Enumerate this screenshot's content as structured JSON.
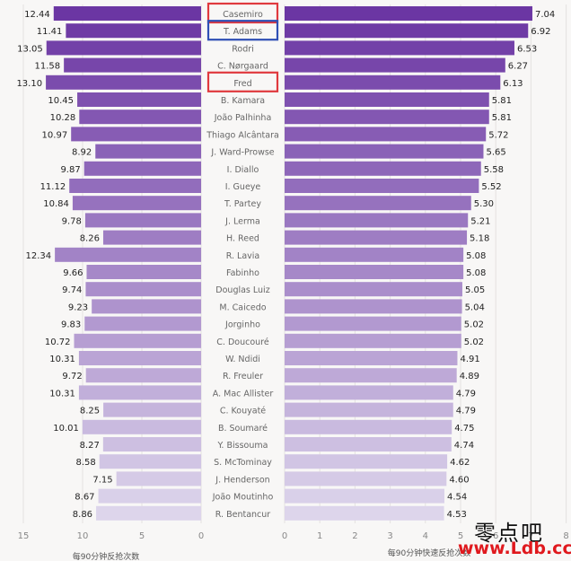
{
  "chart_data": {
    "type": "bar",
    "layout": "butterfly",
    "categories": [
      "Casemiro",
      "T. Adams",
      "Rodri",
      "C. Nørgaard",
      "Fred",
      "B. Kamara",
      "João Palhinha",
      "Thiago Alcântara",
      "J. Ward-Prowse",
      "I. Diallo",
      "I. Gueye",
      "T. Partey",
      "J. Lerma",
      "H. Reed",
      "R. Lavia",
      "Fabinho",
      "Douglas Luiz",
      "M. Caicedo",
      "Jorginho",
      "C. Doucouré",
      "W. Ndidi",
      "R. Freuler",
      "A. Mac Allister",
      "C. Kouyaté",
      "B. Soumaré",
      "Y. Bissouma",
      "S. McTominay",
      "J. Henderson",
      "João Moutinho",
      "R. Bentancur"
    ],
    "series": [
      {
        "name": "每90分钟反抢次数",
        "side": "left",
        "values": [
          12.44,
          11.41,
          13.05,
          11.58,
          13.1,
          10.45,
          10.28,
          10.97,
          8.92,
          9.87,
          11.12,
          10.84,
          9.78,
          8.26,
          12.34,
          9.66,
          9.74,
          9.23,
          9.83,
          10.72,
          10.31,
          9.72,
          10.31,
          8.25,
          10.01,
          8.27,
          8.58,
          7.15,
          8.67,
          8.86
        ],
        "labels": [
          "12.44",
          "11.41",
          "13.05",
          "11.58",
          "13.10",
          "10.45",
          "10.28",
          "10.97",
          "8.92",
          "9.87",
          "11.12",
          "10.84",
          "9.78",
          "8.26",
          "12.34",
          "9.66",
          "9.74",
          "9.23",
          "9.83",
          "10.72",
          "10.31",
          "9.72",
          "10.31",
          "8.25",
          "10.01",
          "8.27",
          "8.58",
          "7.15",
          "8.67",
          "8.86"
        ]
      },
      {
        "name": "每90分钟快速反抢次数",
        "side": "right",
        "values": [
          7.04,
          6.92,
          6.53,
          6.27,
          6.13,
          5.81,
          5.81,
          5.72,
          5.65,
          5.58,
          5.52,
          5.3,
          5.21,
          5.18,
          5.08,
          5.08,
          5.05,
          5.04,
          5.02,
          5.02,
          4.91,
          4.89,
          4.79,
          4.79,
          4.75,
          4.74,
          4.62,
          4.6,
          4.54,
          4.53
        ],
        "labels": [
          "7.04",
          "6.92",
          "6.53",
          "6.27",
          "6.13",
          "5.81",
          "5.81",
          "5.72",
          "5.65",
          "5.58",
          "5.52",
          "5.30",
          "5.21",
          "5.18",
          "5.08",
          "5.08",
          "5.05",
          "5.04",
          "5.02",
          "5.02",
          "4.91",
          "4.89",
          "4.79",
          "4.79",
          "4.75",
          "4.74",
          "4.62",
          "4.60",
          "4.54",
          "4.53"
        ]
      }
    ],
    "xlim_left": [
      15,
      0
    ],
    "xlim_right": [
      0,
      8
    ],
    "left_ticks": [
      "15",
      "10",
      "5",
      "0"
    ],
    "left_tick_values": [
      15,
      10,
      5,
      0
    ],
    "right_ticks": [
      "0",
      "1",
      "2",
      "3",
      "4",
      "5",
      "6",
      "7",
      "8"
    ],
    "right_tick_values": [
      0,
      1,
      2,
      3,
      4,
      5,
      6,
      7,
      8
    ],
    "xlabel_left": "每90分钟反抢次数",
    "xlabel_right": "每90分钟快速反抢次数",
    "highlighted": [
      {
        "category": "Casemiro",
        "color": "#e0393e"
      },
      {
        "category": "T. Adams",
        "color": "#2f4fb5"
      },
      {
        "category": "Fred",
        "color": "#e0393e"
      }
    ],
    "color_dark": "#6b36a3",
    "color_light": "#ddd5eb",
    "grid": true
  },
  "watermark": {
    "text": "零点吧",
    "url": "www.Ldb.cc"
  }
}
